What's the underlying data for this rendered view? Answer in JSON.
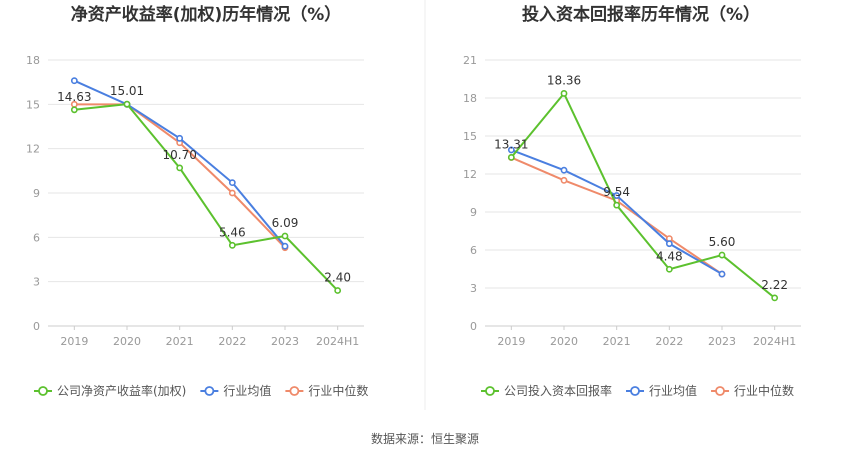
{
  "source": "数据来源：恒生聚源",
  "chart_data": [
    {
      "type": "line",
      "title": "净资产收益率(加权)历年情况（%）",
      "categories": [
        "2019",
        "2020",
        "2021",
        "2022",
        "2023",
        "2024H1"
      ],
      "ylim": [
        0,
        18
      ],
      "yticks": [
        "0",
        "3",
        "6",
        "9",
        "12",
        "15",
        "18"
      ],
      "grid": true,
      "legend_position": "bottom",
      "series": [
        {
          "name": "公司净资产收益率(加权)",
          "color": "#5cc12e",
          "values": [
            14.63,
            15.01,
            10.7,
            5.46,
            6.09,
            2.4
          ],
          "labels": [
            "14.63",
            "15.01",
            "10.70",
            "5.46",
            "6.09",
            "2.40"
          ]
        },
        {
          "name": "行业均值",
          "color": "#4a7fe0",
          "values": [
            16.6,
            15.0,
            12.7,
            9.7,
            5.4,
            null
          ]
        },
        {
          "name": "行业中位数",
          "color": "#ef8a6a",
          "values": [
            15.0,
            15.0,
            12.4,
            9.0,
            5.3,
            null
          ]
        }
      ]
    },
    {
      "type": "line",
      "title": "投入资本回报率历年情况（%）",
      "categories": [
        "2019",
        "2020",
        "2021",
        "2022",
        "2023",
        "2024H1"
      ],
      "ylim": [
        0,
        21
      ],
      "yticks": [
        "0",
        "3",
        "6",
        "9",
        "12",
        "15",
        "18",
        "21"
      ],
      "grid": true,
      "legend_position": "bottom",
      "series": [
        {
          "name": "公司投入资本回报率",
          "color": "#5cc12e",
          "values": [
            13.31,
            18.36,
            9.54,
            4.48,
            5.6,
            2.22
          ],
          "labels": [
            "13.31",
            "18.36",
            "9.54",
            "4.48",
            "5.60",
            "2.22"
          ]
        },
        {
          "name": "行业均值",
          "color": "#4a7fe0",
          "values": [
            13.9,
            12.3,
            10.3,
            6.5,
            4.1,
            null
          ]
        },
        {
          "name": "行业中位数",
          "color": "#ef8a6a",
          "values": [
            13.3,
            11.5,
            9.9,
            6.9,
            4.1,
            null
          ]
        }
      ]
    }
  ]
}
